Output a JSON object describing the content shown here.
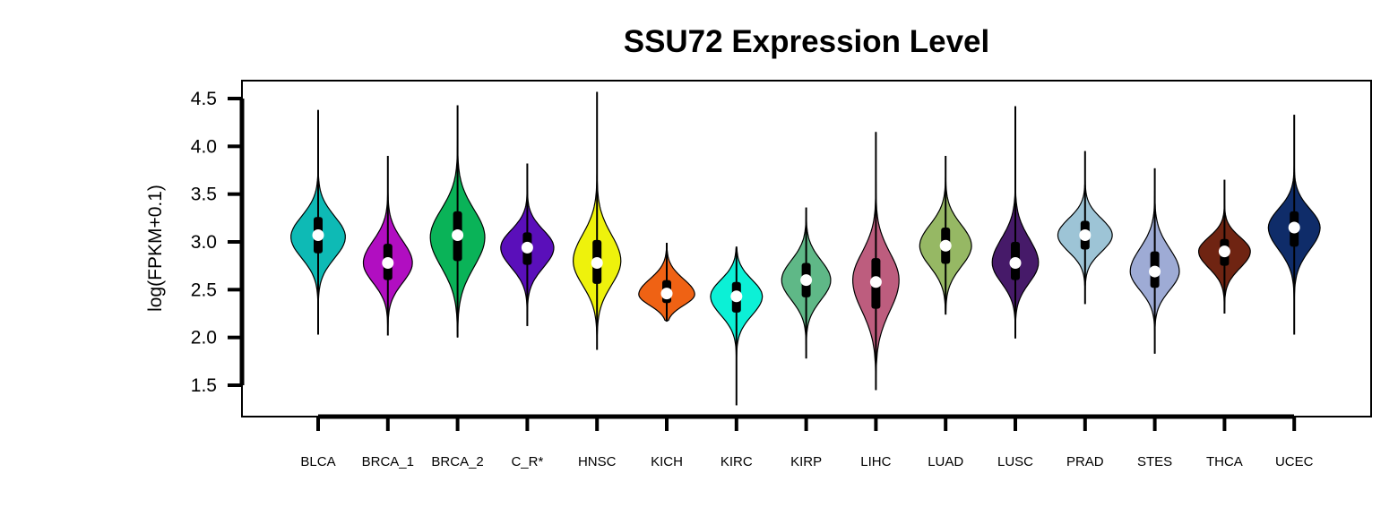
{
  "chart_data": {
    "type": "violin",
    "title": "SSU72 Expression Level",
    "ylabel": "log(FPKM+0.1)",
    "xlabel": "",
    "ylim": [
      1.15,
      4.7
    ],
    "yticks": [
      "1.5",
      "2.0",
      "2.5",
      "3.0",
      "3.5",
      "4.0",
      "4.5"
    ],
    "grid": false,
    "legend": "none",
    "categories": [
      "BLCA",
      "BRCA_1",
      "BRCA_2",
      "C_R*",
      "HNSC",
      "KICH",
      "KIRC",
      "KIRP",
      "LIHC",
      "LUAD",
      "LUSC",
      "PRAD",
      "STES",
      "THCA",
      "UCEC"
    ],
    "colors": [
      "#0ebab5",
      "#b10ec1",
      "#0ab358",
      "#5a0fba",
      "#eef20c",
      "#ef6214",
      "#0cf0d6",
      "#5fb887",
      "#bd5d7e",
      "#96b864",
      "#461a69",
      "#9dc4d6",
      "#9eabd5",
      "#6f2412",
      "#0f2c69"
    ],
    "violins": [
      {
        "name": "BLCA",
        "min": 2.03,
        "max": 4.38,
        "q1": 2.88,
        "median": 3.07,
        "q3": 3.26,
        "mode": 3.05,
        "width": 0.8
      },
      {
        "name": "BRCA_1",
        "min": 2.02,
        "max": 3.9,
        "q1": 2.6,
        "median": 2.78,
        "q3": 2.98,
        "mode": 2.78,
        "width": 0.72
      },
      {
        "name": "BRCA_2",
        "min": 2.0,
        "max": 4.43,
        "q1": 2.8,
        "median": 3.07,
        "q3": 3.32,
        "mode": 3.05,
        "width": 0.8
      },
      {
        "name": "C_R*",
        "min": 2.12,
        "max": 3.82,
        "q1": 2.76,
        "median": 2.94,
        "q3": 3.1,
        "mode": 2.94,
        "width": 0.78
      },
      {
        "name": "HNSC",
        "min": 1.87,
        "max": 4.57,
        "q1": 2.56,
        "median": 2.78,
        "q3": 3.02,
        "mode": 2.8,
        "width": 0.7
      },
      {
        "name": "KICH",
        "min": 2.17,
        "max": 2.99,
        "q1": 2.36,
        "median": 2.46,
        "q3": 2.6,
        "mode": 2.45,
        "width": 0.82
      },
      {
        "name": "KIRC",
        "min": 1.29,
        "max": 2.95,
        "q1": 2.26,
        "median": 2.43,
        "q3": 2.58,
        "mode": 2.43,
        "width": 0.76
      },
      {
        "name": "KIRP",
        "min": 1.78,
        "max": 3.36,
        "q1": 2.42,
        "median": 2.6,
        "q3": 2.78,
        "mode": 2.6,
        "width": 0.72
      },
      {
        "name": "LIHC",
        "min": 1.45,
        "max": 4.15,
        "q1": 2.3,
        "median": 2.58,
        "q3": 2.83,
        "mode": 2.6,
        "width": 0.68
      },
      {
        "name": "LUAD",
        "min": 2.24,
        "max": 3.9,
        "q1": 2.77,
        "median": 2.96,
        "q3": 3.15,
        "mode": 2.96,
        "width": 0.76
      },
      {
        "name": "LUSC",
        "min": 1.99,
        "max": 4.42,
        "q1": 2.6,
        "median": 2.78,
        "q3": 3.0,
        "mode": 2.78,
        "width": 0.68
      },
      {
        "name": "PRAD",
        "min": 2.35,
        "max": 3.95,
        "q1": 2.92,
        "median": 3.07,
        "q3": 3.22,
        "mode": 3.07,
        "width": 0.8
      },
      {
        "name": "STES",
        "min": 1.83,
        "max": 3.77,
        "q1": 2.52,
        "median": 2.69,
        "q3": 2.9,
        "mode": 2.69,
        "width": 0.72
      },
      {
        "name": "THCA",
        "min": 2.25,
        "max": 3.65,
        "q1": 2.75,
        "median": 2.9,
        "q3": 3.03,
        "mode": 2.9,
        "width": 0.76
      },
      {
        "name": "UCEC",
        "min": 2.03,
        "max": 4.33,
        "q1": 2.95,
        "median": 3.15,
        "q3": 3.32,
        "mode": 3.15,
        "width": 0.76
      }
    ]
  }
}
